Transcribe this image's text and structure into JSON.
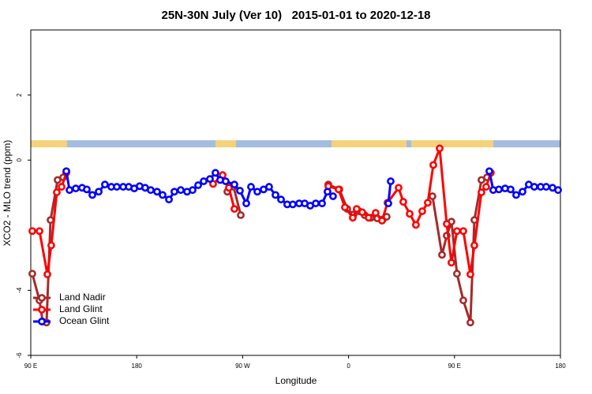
{
  "chart_data": {
    "type": "line",
    "title": "25N-30N July (Ver 10)   2015-01-01 to 2020-12-18",
    "xlabel": "Longitude",
    "ylabel": "XCO2 - MLO trend (ppm)",
    "xlim": [
      90,
      540
    ],
    "xticks": [
      {
        "value": 90,
        "label": "90 E"
      },
      180,
      {
        "value": 270,
        "label": "90 W"
      },
      {
        "value": 360,
        "label": "0"
      },
      {
        "value": 450,
        "label": "90 E"
      },
      {
        "value": 540,
        "label": "180"
      }
    ],
    "ylim": [
      -6,
      4
    ],
    "yticks": [
      -6,
      -4,
      0,
      2
    ],
    "legend": "bottomleft",
    "series": [
      {
        "name": "Land Nadir",
        "color": "#a52a2a",
        "x": [
          91.3,
          97.4,
          100.1,
          103.4,
          106.8,
          112.8,
          117.5,
          null,
          257.0,
          262.3,
          268.4,
          null,
          342.8,
          352.2,
          358.9,
          364.3,
          369.0,
          373.7,
          379.0,
          384.4,
          389.1,
          392.4,
          null,
          431.3,
          439.4,
          443.4,
          447.4,
          452.1,
          457.5,
          463.5,
          466.9,
          472.9,
          477.6
        ],
        "values": [
          -3.49,
          -4.31,
          -4.96,
          -4.99,
          -1.84,
          -0.61,
          -0.53,
          null,
          -0.97,
          -0.82,
          -1.69,
          null,
          -0.75,
          -0.9,
          -1.5,
          -1.67,
          -1.57,
          -1.69,
          -1.77,
          -1.79,
          -1.82,
          -1.74,
          null,
          -1.11,
          -2.91,
          -2.32,
          -1.89,
          -3.49,
          -4.31,
          -4.99,
          -1.84,
          -0.61,
          -0.53
        ]
      },
      {
        "name": "Land Glint",
        "color": "#ff0000",
        "x": [
          91.3,
          97.4,
          104.1,
          107.4,
          112.1,
          116.2,
          120.2,
          null,
          244.9,
          253.0,
          258.3,
          263.0,
          null,
          342.8,
          351.5,
          356.9,
          363.6,
          366.9,
          371.6,
          377.0,
          383.0,
          388.4,
          393.1,
          402.5,
          406.5,
          411.9,
          417.2,
          422.6,
          427.3,
          432.0,
          437.4,
          443.4,
          447.4,
          452.1,
          457.5,
          463.5,
          466.9,
          472.9,
          476.9,
          480.9
        ],
        "values": [
          -2.18,
          -2.18,
          -3.51,
          -2.62,
          -0.99,
          -0.82,
          -0.39,
          null,
          -0.73,
          -0.46,
          -0.85,
          -1.5,
          null,
          -0.8,
          -0.9,
          -1.45,
          -1.77,
          -1.5,
          -1.6,
          -1.77,
          -1.62,
          -1.86,
          -1.31,
          -0.85,
          -1.28,
          -1.65,
          -1.99,
          -1.57,
          -1.31,
          -0.15,
          0.36,
          -1.96,
          -3.15,
          -2.18,
          -2.18,
          -3.51,
          -2.62,
          -0.99,
          -0.82,
          -0.39
        ]
      },
      {
        "name": "Ocean Glint",
        "color": "#0000ff",
        "x": [
          120.2,
          122.9,
          128.2,
          133.6,
          137.6,
          142.3,
          147.7,
          153.0,
          158.4,
          163.1,
          168.5,
          173.2,
          177.9,
          182.5,
          187.2,
          191.9,
          197.3,
          202.0,
          207.4,
          212.0,
          217.4,
          222.8,
          227.5,
          232.2,
          236.9,
          242.2,
          246.9,
          250.9,
          255.6,
          263.0,
          267.7,
          273.1,
          277.1,
          282.5,
          287.8,
          292.5,
          297.9,
          302.6,
          307.9,
          312.6,
          318.0,
          322.7,
          327.4,
          332.1,
          337.5,
          342.1,
          346.8,
          null,
          393.8,
          395.8,
          null,
          479.6,
          482.9,
          487.7,
          493.0,
          497.7,
          502.4,
          507.8,
          513.1,
          517.8,
          523.2,
          527.9,
          533.3,
          538.0
        ],
        "values": [
          -0.34,
          -0.92,
          -0.87,
          -0.85,
          -0.9,
          -1.07,
          -0.97,
          -0.75,
          -0.82,
          -0.82,
          -0.82,
          -0.82,
          -0.87,
          -0.8,
          -0.85,
          -0.92,
          -0.97,
          -1.07,
          -1.21,
          -0.97,
          -0.92,
          -0.97,
          -0.92,
          -0.77,
          -0.65,
          -0.58,
          -0.39,
          -0.61,
          -0.65,
          -0.75,
          -0.94,
          -1.33,
          -0.82,
          -0.97,
          -0.9,
          -0.82,
          -1.07,
          -1.21,
          -1.36,
          -1.36,
          -1.33,
          -1.33,
          -1.4,
          -1.33,
          -1.33,
          -0.97,
          -1.11,
          null,
          -1.33,
          -0.65,
          null,
          -0.34,
          -0.92,
          -0.9,
          -0.87,
          -0.9,
          -1.07,
          -0.97,
          -0.75,
          -0.82,
          -0.82,
          -0.82,
          -0.85,
          -0.92
        ]
      }
    ]
  }
}
